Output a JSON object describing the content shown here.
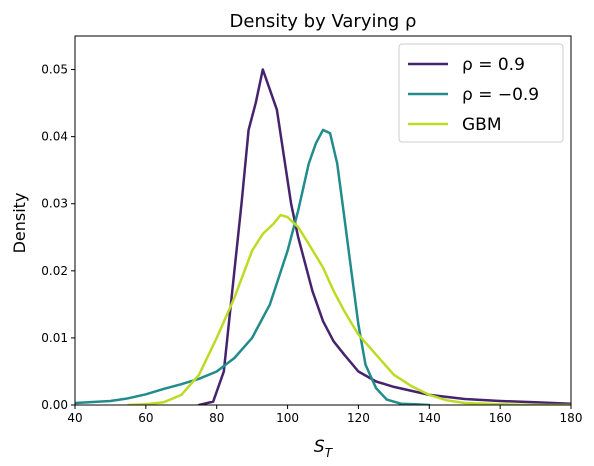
{
  "chart_data": {
    "type": "line",
    "title": "Density by Varying ρ",
    "xlabel": "S_T",
    "ylabel": "Density",
    "xlim": [
      40,
      180
    ],
    "ylim": [
      0,
      0.055
    ],
    "xticks": [
      40,
      60,
      80,
      100,
      120,
      140,
      160,
      180
    ],
    "yticks": [
      0.0,
      0.01,
      0.02,
      0.03,
      0.04,
      0.05
    ],
    "xtick_labels": [
      "40",
      "60",
      "80",
      "100",
      "120",
      "140",
      "160",
      "180"
    ],
    "ytick_labels": [
      "0.00",
      "0.01",
      "0.02",
      "0.03",
      "0.04",
      "0.05"
    ],
    "grid": false,
    "legend_position": "top-right",
    "series": [
      {
        "name": "ρ = 0.9",
        "color": "#46236e",
        "x": [
          75,
          79,
          82,
          85,
          87,
          89,
          91,
          93,
          95,
          97,
          99,
          101,
          103,
          105,
          107,
          110,
          113,
          116,
          120,
          125,
          130,
          140,
          150,
          160,
          170,
          180
        ],
        "y": [
          0.0,
          0.0005,
          0.005,
          0.02,
          0.03,
          0.041,
          0.045,
          0.05,
          0.047,
          0.044,
          0.037,
          0.03,
          0.025,
          0.021,
          0.017,
          0.0125,
          0.0095,
          0.0075,
          0.005,
          0.0035,
          0.0027,
          0.0015,
          0.0009,
          0.0006,
          0.0004,
          0.0002
        ]
      },
      {
        "name": "ρ = −0.9",
        "color": "#228b8b",
        "x": [
          40,
          50,
          55,
          60,
          65,
          70,
          75,
          80,
          85,
          90,
          95,
          100,
          103,
          106,
          108,
          110,
          112,
          114,
          116,
          118,
          120,
          122,
          125,
          128,
          132,
          136,
          140
        ],
        "y": [
          0.0003,
          0.0006,
          0.001,
          0.0016,
          0.0024,
          0.0031,
          0.0039,
          0.005,
          0.007,
          0.01,
          0.015,
          0.023,
          0.029,
          0.036,
          0.039,
          0.041,
          0.0405,
          0.036,
          0.028,
          0.02,
          0.012,
          0.006,
          0.0025,
          0.0008,
          0.0002,
          0.0001,
          0.0
        ]
      },
      {
        "name": "GBM",
        "color": "#bcdb25",
        "x": [
          55,
          60,
          65,
          70,
          75,
          80,
          85,
          90,
          93,
          96,
          98,
          100,
          103,
          106,
          110,
          113,
          116,
          120,
          125,
          130,
          135,
          140,
          145,
          150,
          160,
          170,
          180
        ],
        "y": [
          0.0,
          0.0001,
          0.0004,
          0.0015,
          0.0045,
          0.01,
          0.016,
          0.023,
          0.0255,
          0.027,
          0.0283,
          0.028,
          0.0265,
          0.024,
          0.0205,
          0.017,
          0.014,
          0.0105,
          0.0075,
          0.0045,
          0.0028,
          0.0015,
          0.0007,
          0.0003,
          0.0001,
          0.0,
          0.0
        ]
      }
    ]
  }
}
